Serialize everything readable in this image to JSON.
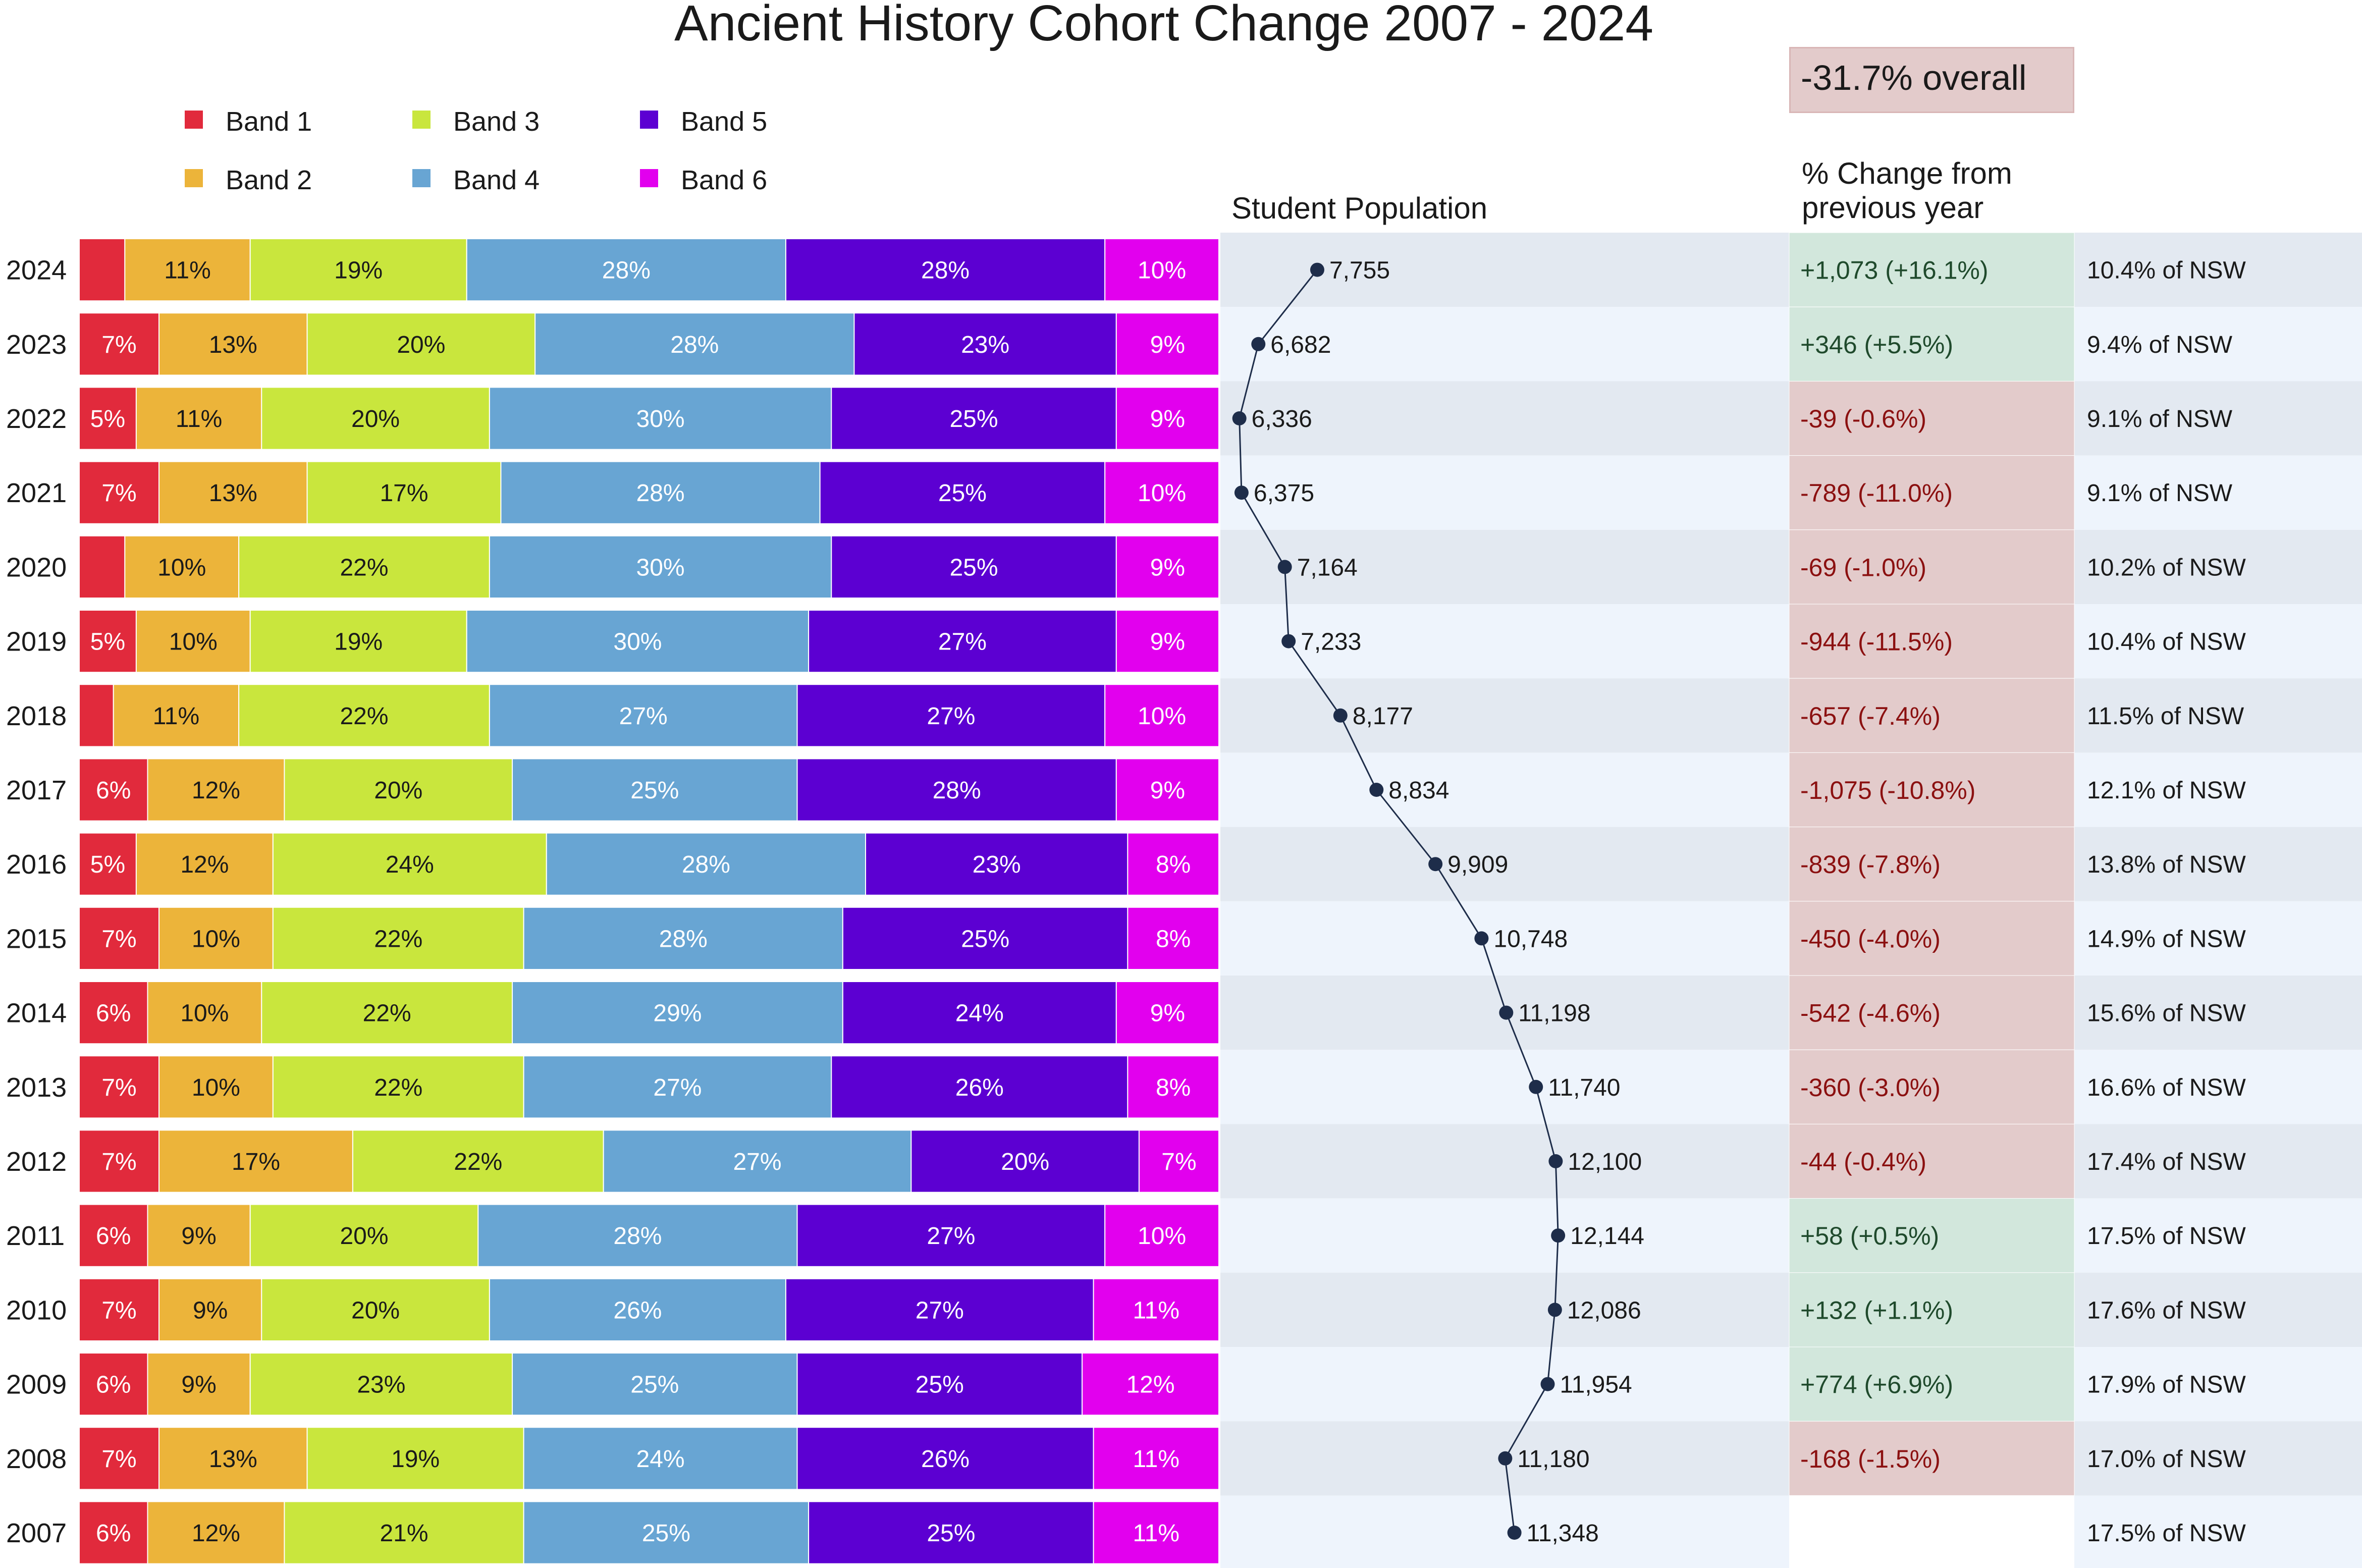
{
  "title": "Ancient History Cohort Change 2007 - 2024",
  "overall_change": "-31.7% overall",
  "population_heading": "Student Population",
  "change_heading": "% Change from previous year",
  "colors": {
    "band1": "#e12a3c",
    "band2": "#ecb43a",
    "band3": "#c9e63d",
    "band4": "#68a5d3",
    "band5": "#5c00d2",
    "band6": "#e200ee",
    "positive_bg": "#d2e7dc",
    "negative_bg": "#e3cbcb",
    "row_a": "#e3e9f1",
    "row_b": "#eef4fc",
    "line": "#1e2d4a",
    "positive_text": "#1f4a2c",
    "negative_text": "#8b1010"
  },
  "chart_data": {
    "type": "bar",
    "stacked": true,
    "orientation": "horizontal",
    "title": "Ancient History Cohort Change 2007 - 2024",
    "legend": [
      "Band 1",
      "Band 2",
      "Band 3",
      "Band 4",
      "Band 5",
      "Band 6"
    ],
    "legend_position": "top-left",
    "rows": [
      {
        "year": "2024",
        "bands": [
          4,
          11,
          19,
          28,
          28,
          10
        ],
        "labels": [
          "",
          "11%",
          "19%",
          "28%",
          "28%",
          "10%"
        ],
        "population": 7755,
        "population_label": "7,755",
        "change": "+1,073  (+16.1%)",
        "direction": "up",
        "nsw": "10.4% of NSW"
      },
      {
        "year": "2023",
        "bands": [
          7,
          13,
          20,
          28,
          23,
          9
        ],
        "labels": [
          "7%",
          "13%",
          "20%",
          "28%",
          "23%",
          "9%"
        ],
        "population": 6682,
        "population_label": "6,682",
        "change": "+346  (+5.5%)",
        "direction": "up",
        "nsw": "9.4% of NSW"
      },
      {
        "year": "2022",
        "bands": [
          5,
          11,
          20,
          30,
          25,
          9
        ],
        "labels": [
          "5%",
          "11%",
          "20%",
          "30%",
          "25%",
          "9%"
        ],
        "population": 6336,
        "population_label": "6,336",
        "change": "-39  (-0.6%)",
        "direction": "down",
        "nsw": "9.1% of NSW"
      },
      {
        "year": "2021",
        "bands": [
          7,
          13,
          17,
          28,
          25,
          10
        ],
        "labels": [
          "7%",
          "13%",
          "17%",
          "28%",
          "25%",
          "10%"
        ],
        "population": 6375,
        "population_label": "6,375",
        "change": "-789  (-11.0%)",
        "direction": "down",
        "nsw": "9.1% of NSW"
      },
      {
        "year": "2020",
        "bands": [
          4,
          10,
          22,
          30,
          25,
          9
        ],
        "labels": [
          "",
          "10%",
          "22%",
          "30%",
          "25%",
          "9%"
        ],
        "population": 7164,
        "population_label": "7,164",
        "change": "-69  (-1.0%)",
        "direction": "down",
        "nsw": "10.2% of NSW"
      },
      {
        "year": "2019",
        "bands": [
          5,
          10,
          19,
          30,
          27,
          9
        ],
        "labels": [
          "5%",
          "10%",
          "19%",
          "30%",
          "27%",
          "9%"
        ],
        "population": 7233,
        "population_label": "7,233",
        "change": "-944  (-11.5%)",
        "direction": "down",
        "nsw": "10.4% of NSW"
      },
      {
        "year": "2018",
        "bands": [
          3,
          11,
          22,
          27,
          27,
          10
        ],
        "labels": [
          "",
          "11%",
          "22%",
          "27%",
          "27%",
          "10%"
        ],
        "population": 8177,
        "population_label": "8,177",
        "change": "-657  (-7.4%)",
        "direction": "down",
        "nsw": "11.5% of NSW"
      },
      {
        "year": "2017",
        "bands": [
          6,
          12,
          20,
          25,
          28,
          9
        ],
        "labels": [
          "6%",
          "12%",
          "20%",
          "25%",
          "28%",
          "9%"
        ],
        "population": 8834,
        "population_label": "8,834",
        "change": "-1,075  (-10.8%)",
        "direction": "down",
        "nsw": "12.1% of NSW"
      },
      {
        "year": "2016",
        "bands": [
          5,
          12,
          24,
          28,
          23,
          8
        ],
        "labels": [
          "5%",
          "12%",
          "24%",
          "28%",
          "23%",
          "8%"
        ],
        "population": 9909,
        "population_label": "9,909",
        "change": "-839  (-7.8%)",
        "direction": "down",
        "nsw": "13.8% of NSW"
      },
      {
        "year": "2015",
        "bands": [
          7,
          10,
          22,
          28,
          25,
          8
        ],
        "labels": [
          "7%",
          "10%",
          "22%",
          "28%",
          "25%",
          "8%"
        ],
        "population": 10748,
        "population_label": "10,748",
        "change": "-450  (-4.0%)",
        "direction": "down",
        "nsw": "14.9% of NSW"
      },
      {
        "year": "2014",
        "bands": [
          6,
          10,
          22,
          29,
          24,
          9
        ],
        "labels": [
          "6%",
          "10%",
          "22%",
          "29%",
          "24%",
          "9%"
        ],
        "population": 11198,
        "population_label": "11,198",
        "change": "-542  (-4.6%)",
        "direction": "down",
        "nsw": "15.6% of NSW"
      },
      {
        "year": "2013",
        "bands": [
          7,
          10,
          22,
          27,
          26,
          8
        ],
        "labels": [
          "7%",
          "10%",
          "22%",
          "27%",
          "26%",
          "8%"
        ],
        "population": 11740,
        "population_label": "11,740",
        "change": "-360  (-3.0%)",
        "direction": "down",
        "nsw": "16.6% of NSW"
      },
      {
        "year": "2012",
        "bands": [
          7,
          17,
          22,
          27,
          20,
          7
        ],
        "labels": [
          "7%",
          "17%",
          "22%",
          "27%",
          "20%",
          "7%"
        ],
        "population": 12100,
        "population_label": "12,100",
        "change": "-44  (-0.4%)",
        "direction": "down",
        "nsw": "17.4% of NSW"
      },
      {
        "year": "2011",
        "bands": [
          6,
          9,
          20,
          28,
          27,
          10
        ],
        "labels": [
          "6%",
          "9%",
          "20%",
          "28%",
          "27%",
          "10%"
        ],
        "population": 12144,
        "population_label": "12,144",
        "change": "+58  (+0.5%)",
        "direction": "up",
        "nsw": "17.5% of NSW"
      },
      {
        "year": "2010",
        "bands": [
          7,
          9,
          20,
          26,
          27,
          11
        ],
        "labels": [
          "7%",
          "9%",
          "20%",
          "26%",
          "27%",
          "11%"
        ],
        "population": 12086,
        "population_label": "12,086",
        "change": "+132  (+1.1%)",
        "direction": "up",
        "nsw": "17.6% of NSW"
      },
      {
        "year": "2009",
        "bands": [
          6,
          9,
          23,
          25,
          25,
          12
        ],
        "labels": [
          "6%",
          "9%",
          "23%",
          "25%",
          "25%",
          "12%"
        ],
        "population": 11954,
        "population_label": "11,954",
        "change": "+774  (+6.9%)",
        "direction": "up",
        "nsw": "17.9% of NSW"
      },
      {
        "year": "2008",
        "bands": [
          7,
          13,
          19,
          24,
          26,
          11
        ],
        "labels": [
          "7%",
          "13%",
          "19%",
          "24%",
          "26%",
          "11%"
        ],
        "population": 11180,
        "population_label": "11,180",
        "change": "-168  (-1.5%)",
        "direction": "down",
        "nsw": "17.0% of NSW"
      },
      {
        "year": "2007",
        "bands": [
          6,
          12,
          21,
          25,
          25,
          11
        ],
        "labels": [
          "6%",
          "12%",
          "21%",
          "25%",
          "25%",
          "11%"
        ],
        "population": 11348,
        "population_label": "11,348",
        "change": "",
        "direction": "none",
        "nsw": "17.5% of NSW"
      }
    ]
  }
}
